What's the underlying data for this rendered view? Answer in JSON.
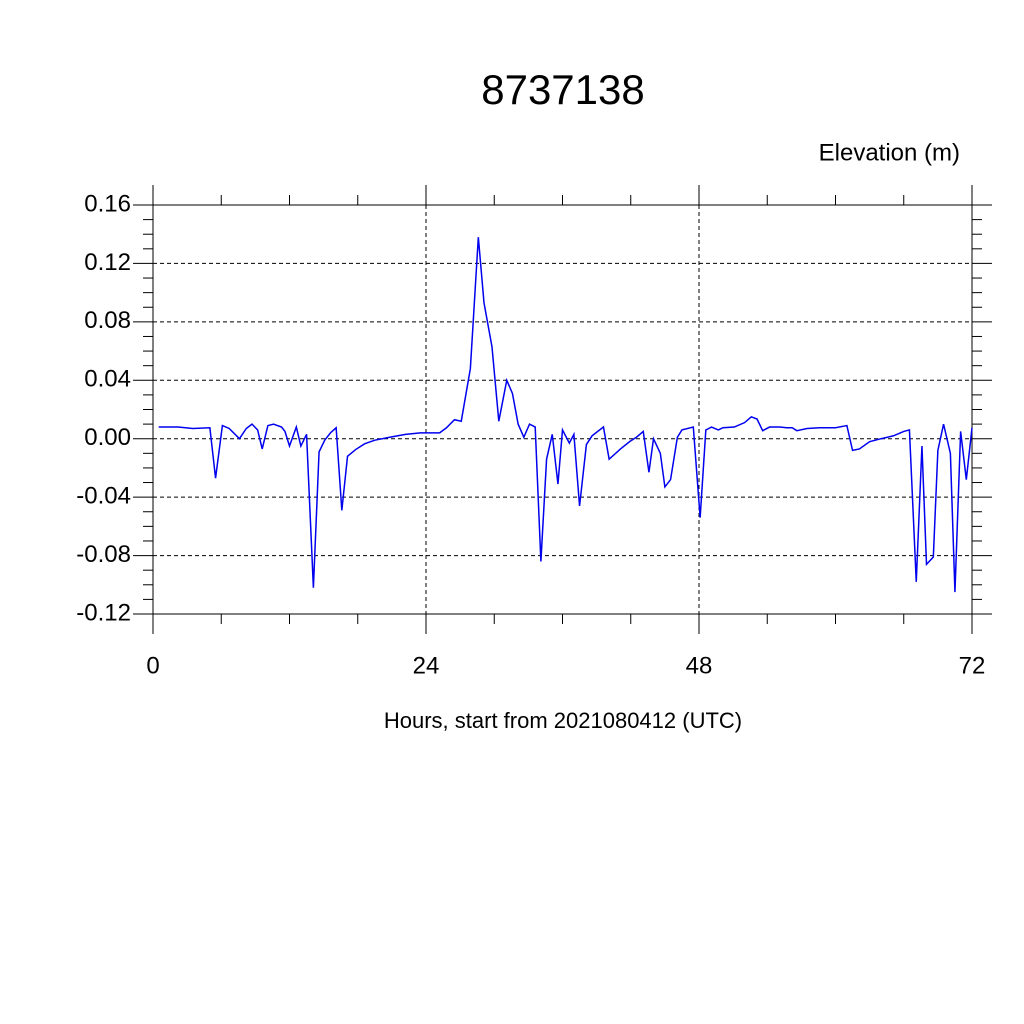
{
  "chart_data": {
    "type": "line",
    "title": "8737138",
    "y_label": "Elevation (m)",
    "x_label": "Hours, start from 2021080412 (UTC)",
    "color": "#0000ee",
    "grid": true,
    "xlim": [
      0,
      72
    ],
    "xticks": [
      0,
      24,
      48,
      72
    ],
    "ylim": [
      -0.12,
      0.16
    ],
    "yticks": [
      0.16,
      0.12,
      0.08,
      0.04,
      {
        "value": 0,
        "label": "0.00"
      },
      -0.04,
      -0.08,
      -0.12
    ],
    "x": [
      0.5,
      2.2,
      3.5,
      5.0,
      5.5,
      6.1,
      6.7,
      7.6,
      8.2,
      8.7,
      9.2,
      9.6,
      10.1,
      10.6,
      11.3,
      11.6,
      12.0,
      12.6,
      13.0,
      13.5,
      14.1,
      14.6,
      15.1,
      15.6,
      16.1,
      16.6,
      17.1,
      17.8,
      18.6,
      19.5,
      20.8,
      22.2,
      23.5,
      25.2,
      25.8,
      26.5,
      27.1,
      27.9,
      28.6,
      29.1,
      29.8,
      30.4,
      31.1,
      31.6,
      32.1,
      32.6,
      33.1,
      33.6,
      34.1,
      34.6,
      35.1,
      35.6,
      36.0,
      36.6,
      37.0,
      37.5,
      38.1,
      38.6,
      39.6,
      40.1,
      41.1,
      41.9,
      42.5,
      43.1,
      43.6,
      44.0,
      44.6,
      45.0,
      45.5,
      46.1,
      46.5,
      47.5,
      48.1,
      48.6,
      49.1,
      49.7,
      50.1,
      51.1,
      52.0,
      52.6,
      53.1,
      53.6,
      54.2,
      55.1,
      55.7,
      56.2,
      56.6,
      57.5,
      58.6,
      60.0,
      61.0,
      61.5,
      62.1,
      63.0,
      64.0,
      65.1,
      66.0,
      66.5,
      67.1,
      67.6,
      68.0,
      68.6,
      69.0,
      69.5,
      70.1,
      70.5,
      71.0,
      71.5,
      72.0
    ],
    "series": [
      {
        "name": "Elevation",
        "color": "#0000ee",
        "values": [
          0.008,
          0.008,
          0.007,
          0.0075,
          -0.027,
          0.009,
          0.007,
          0.0,
          0.007,
          0.01,
          0.006,
          -0.007,
          0.009,
          0.01,
          0.008,
          0.005,
          -0.005,
          0.008,
          -0.005,
          0.003,
          -0.102,
          -0.009,
          -0.001,
          0.004,
          0.0075,
          -0.049,
          -0.012,
          -0.0075,
          -0.0035,
          -0.001,
          0.001,
          0.003,
          0.004,
          0.004,
          0.0075,
          0.013,
          0.012,
          0.048,
          0.138,
          0.093,
          0.063,
          0.012,
          0.04,
          0.031,
          0.01,
          0.001,
          0.01,
          0.008,
          -0.084,
          -0.014,
          0.003,
          -0.031,
          0.006,
          -0.003,
          0.003,
          -0.046,
          -0.004,
          0.002,
          0.008,
          -0.014,
          -0.007,
          -0.002,
          0.001,
          0.005,
          -0.023,
          0.0,
          -0.01,
          -0.033,
          -0.028,
          0.001,
          0.006,
          0.008,
          -0.054,
          0.006,
          0.008,
          0.006,
          0.0075,
          0.008,
          0.011,
          0.015,
          0.0135,
          0.0055,
          0.008,
          0.008,
          0.0075,
          0.0075,
          0.0055,
          0.007,
          0.0075,
          0.0075,
          0.009,
          -0.008,
          -0.007,
          -0.002,
          0.0,
          0.002,
          0.005,
          0.006,
          -0.098,
          -0.005,
          -0.086,
          -0.081,
          -0.008,
          0.01,
          -0.01,
          -0.105,
          0.005,
          -0.028,
          0.0075
        ]
      }
    ]
  }
}
